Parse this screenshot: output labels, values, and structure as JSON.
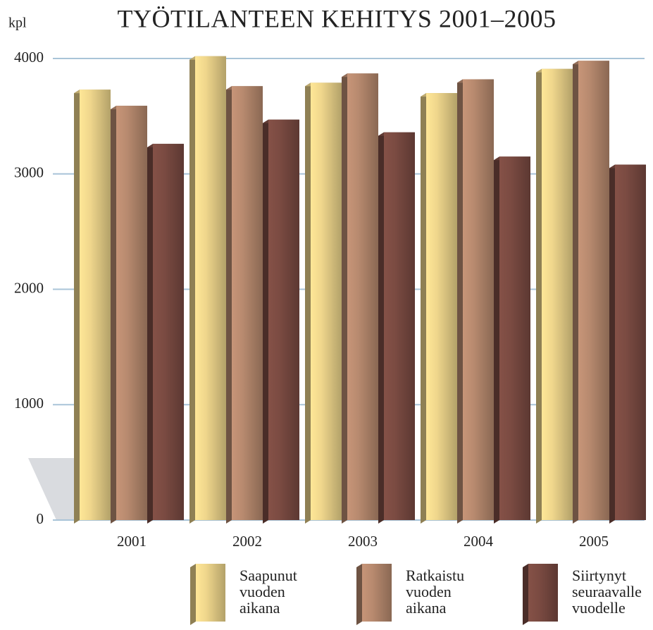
{
  "chart_data": {
    "type": "bar",
    "title": "TYÖTILANTEEN KEHITYS 2001–2005",
    "y_label": "kpl",
    "categories": [
      "2001",
      "2002",
      "2003",
      "2004",
      "2005"
    ],
    "series": [
      {
        "name": "Saapunut vuoden aikana",
        "color": "#efd68c",
        "values": [
          3730,
          4020,
          3790,
          3700,
          3910
        ]
      },
      {
        "name": "Ratkaistu vuoden aikana",
        "color": "#b88a6f",
        "values": [
          3590,
          3760,
          3870,
          3820,
          3980
        ]
      },
      {
        "name": "Siirtynyt seuraavalle vuodelle",
        "color": "#7b4b42",
        "values": [
          3260,
          3470,
          3360,
          3150,
          3080
        ]
      }
    ],
    "ylim": [
      0,
      4000
    ],
    "yticks": [
      0,
      1000,
      2000,
      3000,
      4000
    ],
    "grid": true,
    "legend": "bottom"
  }
}
